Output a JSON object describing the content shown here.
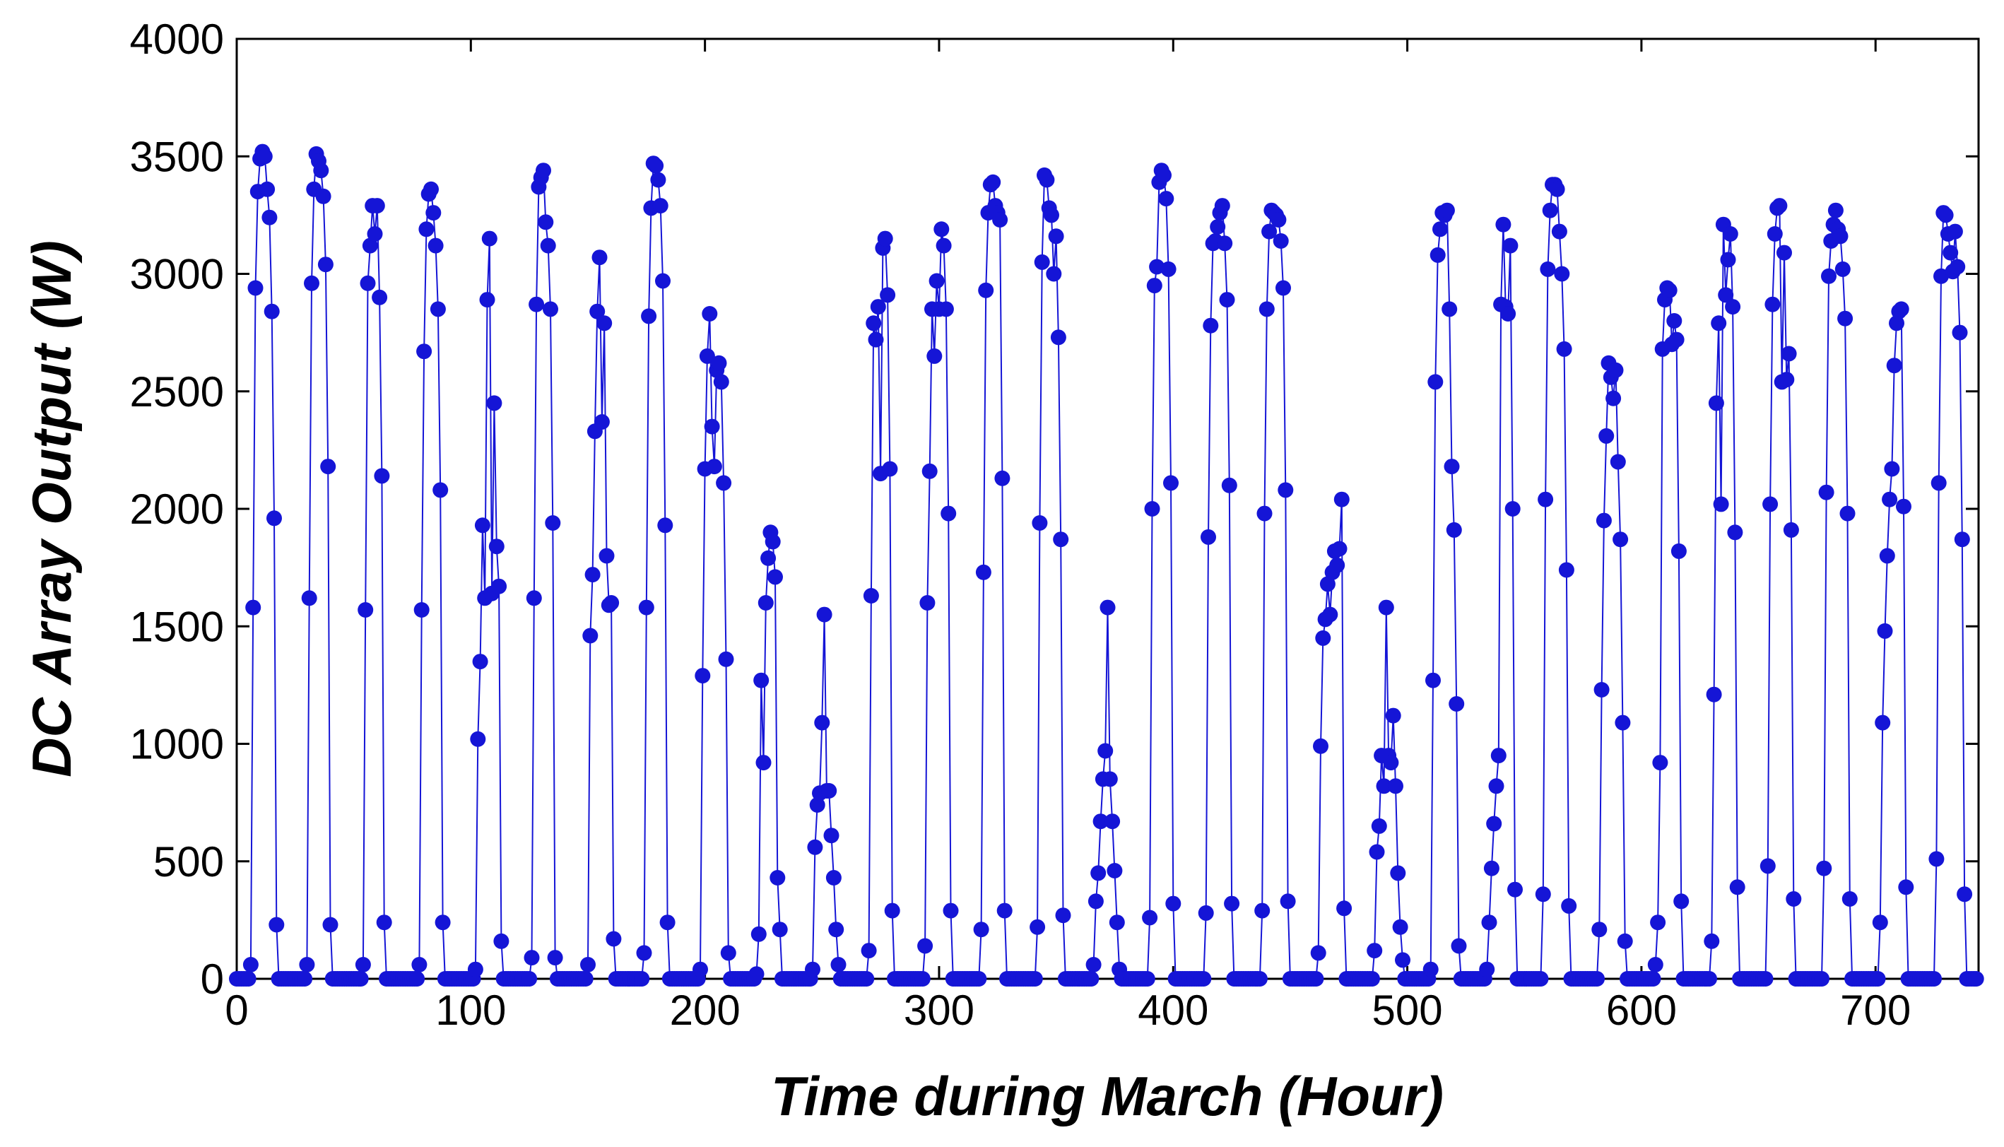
{
  "chart_data": {
    "type": "line",
    "title": "",
    "xlabel": "Time during March (Hour)",
    "ylabel": "DC Array Output (W)",
    "xlim": [
      0,
      744
    ],
    "ylim": [
      0,
      4000
    ],
    "xticks": [
      0,
      100,
      200,
      300,
      400,
      500,
      600,
      700
    ],
    "yticks": [
      0,
      500,
      1000,
      1500,
      2000,
      2500,
      3000,
      3500,
      4000
    ],
    "grid": false,
    "legend": "none",
    "color": "#1515d6",
    "markers": true,
    "days": [
      [
        0,
        0,
        0,
        0,
        0,
        0,
        60,
        1580,
        2940,
        3350,
        3490,
        3520,
        3500,
        3360,
        3240,
        2840,
        1960,
        230,
        0,
        0,
        0,
        0,
        0,
        0
      ],
      [
        0,
        0,
        0,
        0,
        0,
        0,
        60,
        1620,
        2960,
        3360,
        3510,
        3480,
        3440,
        3330,
        3040,
        2180,
        230,
        0,
        0,
        0,
        0,
        0,
        0,
        0
      ],
      [
        0,
        0,
        0,
        0,
        0,
        0,
        60,
        1570,
        2960,
        3120,
        3290,
        3170,
        3290,
        2900,
        2140,
        240,
        0,
        0,
        0,
        0,
        0,
        0,
        0,
        0
      ],
      [
        0,
        0,
        0,
        0,
        0,
        0,
        60,
        1570,
        2670,
        3190,
        3340,
        3360,
        3260,
        3120,
        2850,
        2080,
        240,
        0,
        0,
        0,
        0,
        0,
        0,
        0
      ],
      [
        0,
        0,
        0,
        0,
        0,
        0,
        40,
        1020,
        1350,
        1930,
        1620,
        2890,
        3150,
        1640,
        2450,
        1840,
        1670,
        160,
        0,
        0,
        0,
        0,
        0,
        0
      ],
      [
        0,
        0,
        0,
        0,
        0,
        0,
        90,
        1620,
        2870,
        3370,
        3410,
        3440,
        3220,
        3120,
        2850,
        1940,
        90,
        0,
        0,
        0,
        0,
        0,
        0,
        0
      ],
      [
        0,
        0,
        0,
        0,
        0,
        0,
        60,
        1460,
        1720,
        2330,
        2840,
        3070,
        2370,
        2790,
        1800,
        1590,
        1600,
        170,
        0,
        0,
        0,
        0,
        0,
        0
      ],
      [
        0,
        0,
        0,
        0,
        0,
        0,
        110,
        1580,
        2820,
        3280,
        3470,
        3460,
        3400,
        3290,
        2970,
        1930,
        240,
        0,
        0,
        0,
        0,
        0,
        0,
        0
      ],
      [
        0,
        0,
        0,
        0,
        0,
        0,
        40,
        1290,
        2170,
        2650,
        2830,
        2350,
        2180,
        2590,
        2620,
        2540,
        2110,
        1360,
        110,
        0,
        0,
        0,
        0,
        0
      ],
      [
        0,
        0,
        0,
        0,
        0,
        0,
        20,
        190,
        1270,
        920,
        1600,
        1790,
        1900,
        1860,
        1710,
        430,
        210,
        0,
        0,
        0,
        0,
        0,
        0,
        0
      ],
      [
        0,
        0,
        0,
        0,
        0,
        0,
        40,
        560,
        740,
        790,
        1090,
        1550,
        800,
        800,
        610,
        430,
        210,
        60,
        0,
        0,
        0,
        0,
        0,
        0
      ],
      [
        0,
        0,
        0,
        0,
        0,
        0,
        120,
        1630,
        2790,
        2720,
        2860,
        2150,
        3110,
        3150,
        2910,
        2170,
        290,
        0,
        0,
        0,
        0,
        0,
        0,
        0
      ],
      [
        0,
        0,
        0,
        0,
        0,
        0,
        140,
        1600,
        2160,
        2850,
        2650,
        2970,
        2850,
        3190,
        3120,
        2850,
        1980,
        290,
        0,
        0,
        0,
        0,
        0,
        0
      ],
      [
        0,
        0,
        0,
        0,
        0,
        0,
        210,
        1730,
        2930,
        3260,
        3380,
        3390,
        3290,
        3260,
        3230,
        2130,
        290,
        0,
        0,
        0,
        0,
        0,
        0,
        0
      ],
      [
        0,
        0,
        0,
        0,
        0,
        0,
        220,
        1940,
        3050,
        3420,
        3400,
        3280,
        3250,
        3000,
        3160,
        2730,
        1870,
        270,
        0,
        0,
        0,
        0,
        0,
        0
      ],
      [
        0,
        0,
        0,
        0,
        0,
        0,
        60,
        330,
        450,
        670,
        850,
        970,
        1580,
        850,
        670,
        460,
        240,
        40,
        0,
        0,
        0,
        0,
        0,
        0
      ],
      [
        0,
        0,
        0,
        0,
        0,
        0,
        260,
        2000,
        2950,
        3030,
        3390,
        3440,
        3420,
        3320,
        3020,
        2110,
        320,
        0,
        0,
        0,
        0,
        0,
        0,
        0
      ],
      [
        0,
        0,
        0,
        0,
        0,
        0,
        280,
        1880,
        2780,
        3130,
        3140,
        3200,
        3260,
        3290,
        3130,
        2890,
        2100,
        320,
        0,
        0,
        0,
        0,
        0,
        0
      ],
      [
        0,
        0,
        0,
        0,
        0,
        0,
        290,
        1980,
        2850,
        3180,
        3270,
        3260,
        3250,
        3230,
        3140,
        2940,
        2080,
        330,
        0,
        0,
        0,
        0,
        0,
        0
      ],
      [
        0,
        0,
        0,
        0,
        0,
        0,
        110,
        990,
        1450,
        1530,
        1680,
        1550,
        1730,
        1820,
        1760,
        1830,
        2040,
        300,
        0,
        0,
        0,
        0,
        0,
        0
      ],
      [
        0,
        0,
        0,
        0,
        0,
        0,
        120,
        540,
        650,
        950,
        820,
        1580,
        950,
        920,
        1120,
        820,
        450,
        220,
        80,
        0,
        0,
        0,
        0,
        0
      ],
      [
        0,
        0,
        0,
        0,
        0,
        0,
        40,
        1270,
        2540,
        3080,
        3190,
        3260,
        3250,
        3270,
        2850,
        2180,
        1910,
        1170,
        140,
        0,
        0,
        0,
        0,
        0
      ],
      [
        0,
        0,
        0,
        0,
        0,
        0,
        40,
        240,
        470,
        660,
        820,
        950,
        2870,
        3210,
        2860,
        2830,
        3120,
        2000,
        380,
        0,
        0,
        0,
        0,
        0
      ],
      [
        0,
        0,
        0,
        0,
        0,
        0,
        360,
        2040,
        3020,
        3270,
        3380,
        3380,
        3360,
        3180,
        3000,
        2680,
        1740,
        310,
        0,
        0,
        0,
        0,
        0,
        0
      ],
      [
        0,
        0,
        0,
        0,
        0,
        0,
        210,
        1230,
        1950,
        2310,
        2620,
        2560,
        2470,
        2590,
        2200,
        1870,
        1090,
        160,
        0,
        0,
        0,
        0,
        0,
        0
      ],
      [
        0,
        0,
        0,
        0,
        0,
        0,
        60,
        240,
        920,
        2680,
        2890,
        2940,
        2930,
        2700,
        2800,
        2720,
        1820,
        330,
        0,
        0,
        0,
        0,
        0,
        0
      ],
      [
        0,
        0,
        0,
        0,
        0,
        0,
        160,
        1210,
        2450,
        2790,
        2020,
        3210,
        2910,
        3060,
        3170,
        2860,
        1900,
        390,
        0,
        0,
        0,
        0,
        0,
        0
      ],
      [
        0,
        0,
        0,
        0,
        0,
        0,
        480,
        2020,
        2870,
        3170,
        3280,
        3290,
        2540,
        3090,
        2550,
        2660,
        1910,
        340,
        0,
        0,
        0,
        0,
        0,
        0
      ],
      [
        0,
        0,
        0,
        0,
        0,
        0,
        470,
        2070,
        2990,
        3140,
        3210,
        3270,
        3190,
        3160,
        3020,
        2810,
        1980,
        340,
        0,
        0,
        0,
        0,
        0,
        0
      ],
      [
        0,
        0,
        0,
        0,
        0,
        0,
        240,
        1090,
        1480,
        1800,
        2040,
        2170,
        2610,
        2790,
        2840,
        2850,
        2010,
        390,
        0,
        0,
        0,
        0,
        0,
        0
      ],
      [
        0,
        0,
        0,
        0,
        0,
        0,
        510,
        2110,
        2990,
        3260,
        3250,
        3170,
        3090,
        3010,
        3180,
        3030,
        2750,
        1870,
        360,
        0,
        0,
        0,
        0,
        0
      ]
    ]
  }
}
